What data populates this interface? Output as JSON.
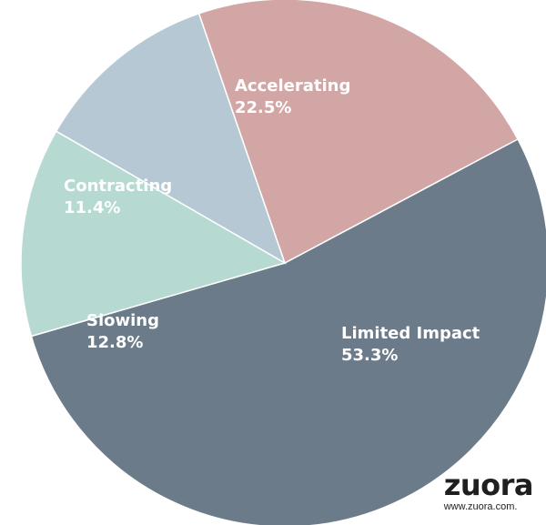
{
  "chart_data": {
    "type": "pie",
    "slices": [
      {
        "label": "Limited Impact",
        "value": 53.3,
        "display": "53.3%",
        "color": "#6b7b8a"
      },
      {
        "label": "Slowing",
        "value": 12.8,
        "display": "12.8%",
        "color": "#b6d9d1"
      },
      {
        "label": "Contracting",
        "value": 11.4,
        "display": "11.4%",
        "color": "#b6c8d3"
      },
      {
        "label": "Accelerating",
        "value": 22.5,
        "display": "22.5%",
        "color": "#d3a6a6"
      }
    ]
  },
  "branding": {
    "logo": "zuora",
    "url": "www.zuora.com."
  }
}
